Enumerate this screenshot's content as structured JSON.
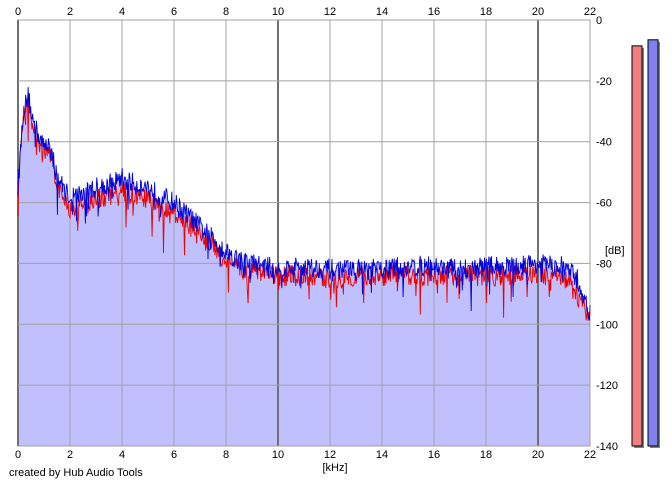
{
  "chart_data": {
    "type": "area",
    "title": "",
    "xlabel": "[kHz]",
    "ylabel": "[dB]",
    "xlim": [
      0,
      22
    ],
    "ylim": [
      -140,
      0
    ],
    "x_ticks": [
      "0",
      "2",
      "4",
      "6",
      "8",
      "10",
      "12",
      "14",
      "16",
      "18",
      "20",
      "22"
    ],
    "y_ticks": [
      "0",
      "-20",
      "-40",
      "-60",
      "-80",
      "-100",
      "-120",
      "-140"
    ],
    "grid": true,
    "legend": "none",
    "series": [
      {
        "color": "#0000dd",
        "fill": "#c0c0ff",
        "x": [
          0.0,
          0.2,
          0.4,
          0.6,
          0.8,
          1.0,
          1.2,
          1.4,
          1.6,
          1.8,
          2.0,
          2.5,
          3.0,
          3.5,
          4.0,
          4.5,
          5.0,
          5.5,
          6.0,
          6.5,
          7.0,
          7.5,
          8.0,
          8.5,
          9.0,
          10.0,
          11.0,
          12.0,
          13.0,
          14.0,
          15.0,
          16.0,
          17.0,
          18.0,
          19.0,
          20.0,
          20.5,
          21.0,
          21.5,
          22.0
        ],
        "values": [
          -55,
          -30,
          -25,
          -34,
          -38,
          -42,
          -40,
          -48,
          -53,
          -56,
          -58,
          -57,
          -55,
          -54,
          -52,
          -54,
          -55,
          -58,
          -60,
          -64,
          -68,
          -72,
          -76,
          -79,
          -80,
          -82,
          -81,
          -82,
          -82,
          -82,
          -81,
          -81,
          -82,
          -81,
          -81,
          -80,
          -81,
          -81,
          -85,
          -97
        ]
      },
      {
        "color": "#ee0000",
        "x": [
          0.0,
          0.2,
          0.4,
          0.6,
          0.8,
          1.0,
          1.2,
          1.4,
          1.6,
          1.8,
          2.0,
          2.5,
          3.0,
          3.5,
          4.0,
          4.5,
          5.0,
          5.5,
          6.0,
          6.5,
          7.0,
          7.5,
          8.0,
          8.5,
          9.0,
          10.0,
          11.0,
          12.0,
          13.0,
          14.0,
          15.0,
          16.0,
          17.0,
          18.0,
          19.0,
          20.0,
          20.5,
          21.0,
          21.5,
          22.0
        ],
        "values": [
          -55,
          -32,
          -27,
          -36,
          -40,
          -44,
          -42,
          -50,
          -57,
          -60,
          -62,
          -61,
          -59,
          -58,
          -56,
          -58,
          -59,
          -62,
          -64,
          -67,
          -71,
          -75,
          -79,
          -82,
          -82,
          -84,
          -84,
          -85,
          -84,
          -84,
          -84,
          -84,
          -84,
          -84,
          -84,
          -83,
          -84,
          -85,
          -90,
          -98
        ]
      }
    ],
    "level_meters": [
      {
        "color": "#f08080",
        "level": -8.5
      },
      {
        "color": "#8080f0",
        "level": -6.5
      }
    ]
  },
  "footer": {
    "credit": "created by Hub Audio Tools"
  }
}
